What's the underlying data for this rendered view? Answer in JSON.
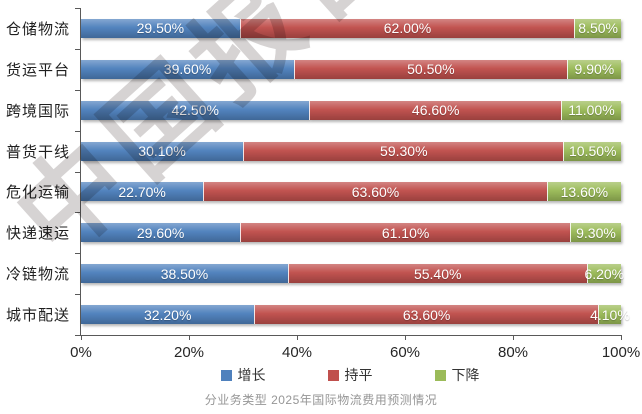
{
  "watermark_text": "中国报告网",
  "caption": "分业务类型 2025年国际物流费用预测情况",
  "chart_data": {
    "type": "bar",
    "orientation": "horizontal",
    "stacked": true,
    "title": "",
    "categories": [
      "仓储物流",
      "货运平台",
      "跨境国际",
      "普货干线",
      "危化运输",
      "快递速运",
      "冷链物流",
      "城市配送"
    ],
    "series": [
      {
        "name": "增长",
        "color": "#4F81BD",
        "values": [
          29.5,
          39.6,
          42.5,
          30.1,
          22.7,
          29.6,
          38.5,
          32.2
        ]
      },
      {
        "name": "持平",
        "color": "#C0504D",
        "values": [
          62.0,
          50.5,
          46.6,
          59.3,
          63.6,
          61.1,
          55.4,
          63.6
        ]
      },
      {
        "name": "下降",
        "color": "#9BBB59",
        "values": [
          8.5,
          9.9,
          11.0,
          10.5,
          13.6,
          9.3,
          6.2,
          4.1
        ]
      }
    ],
    "value_label_suffix": "%",
    "value_label_decimals": 2,
    "x_ticks": [
      "0%",
      "20%",
      "40%",
      "60%",
      "80%",
      "100%"
    ],
    "xlim": [
      0,
      100
    ],
    "grid": false,
    "legend_position": "bottom",
    "axis_color": "#595959",
    "label_text_color": "#FFFFFF"
  }
}
